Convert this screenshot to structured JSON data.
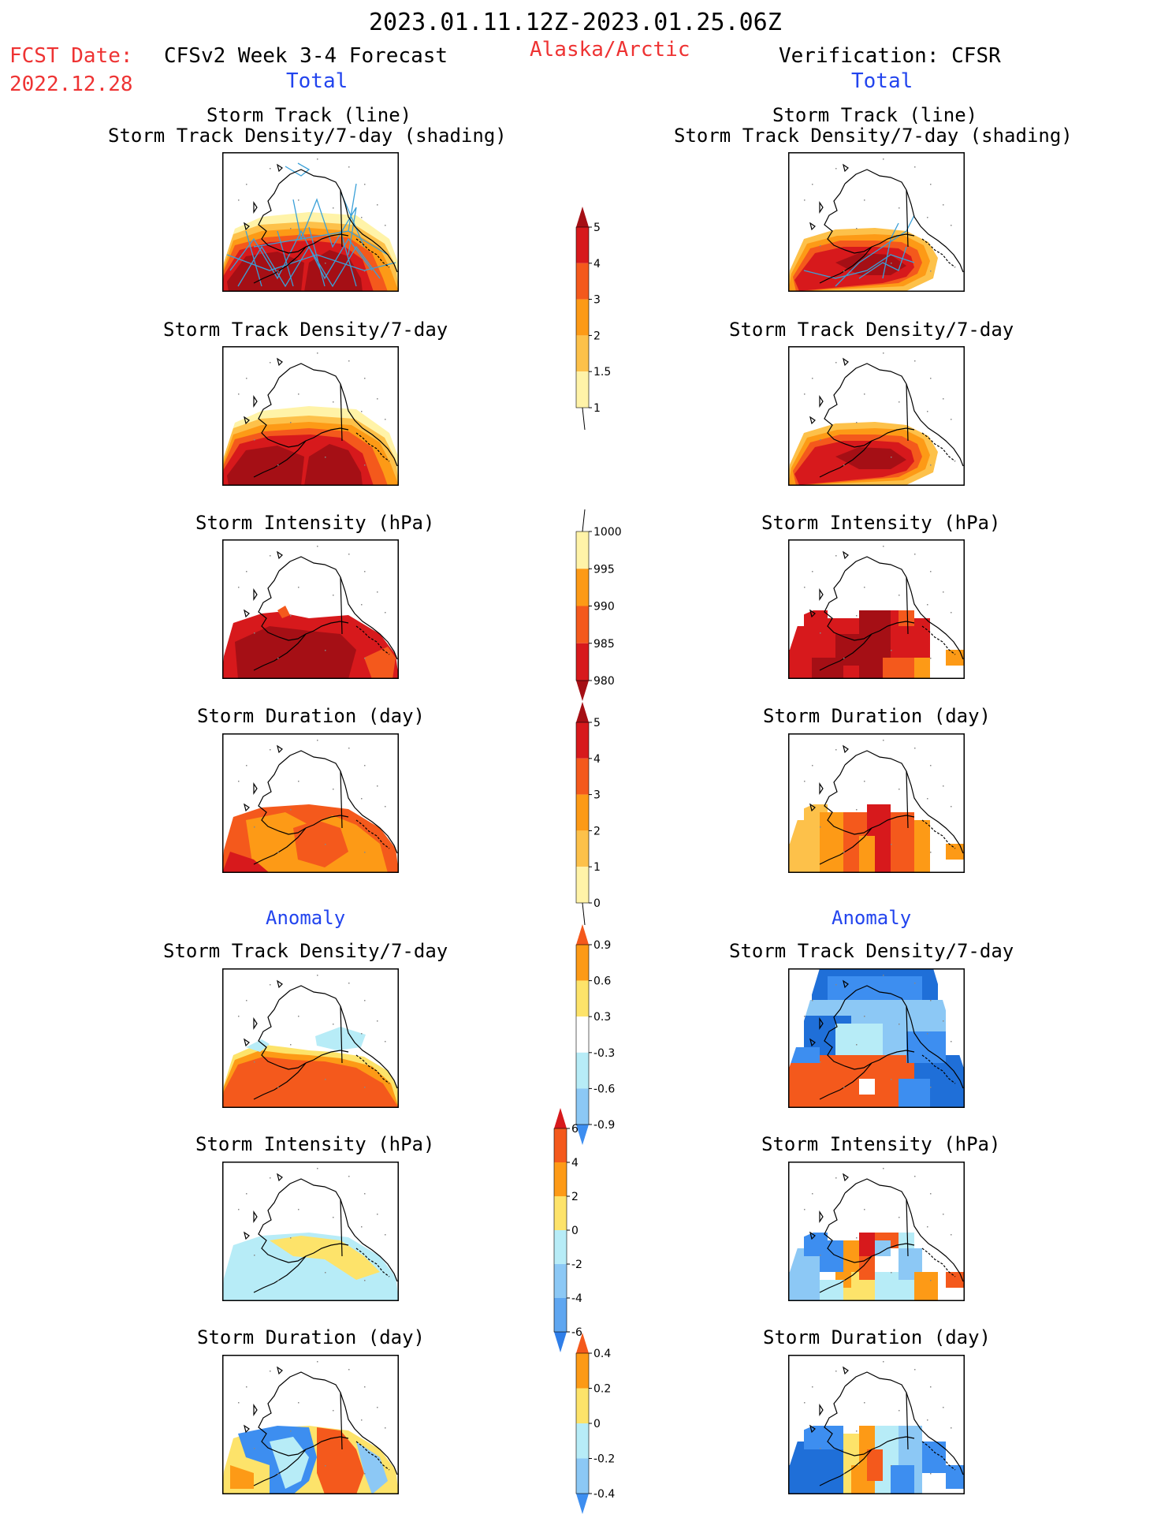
{
  "header": {
    "date_range": "2023.01.11.12Z-2023.01.25.06Z",
    "fcst_label": "FCST Date:",
    "fcst_date": "2022.12.28",
    "forecast_title": "CFSv2 Week 3-4 Forecast",
    "region": "Alaska/Arctic",
    "verification_title": "Verification: CFSR",
    "total_left": "Total",
    "total_right": "Total"
  },
  "sections": {
    "anomaly_left": "Anomaly",
    "anomaly_right": "Anomaly"
  },
  "panel_titles": {
    "storm_track_line": "Storm Track (line)",
    "storm_track_density_shading": "Storm Track Density/7-day (shading)",
    "storm_track_density": "Storm Track Density/7-day",
    "storm_intensity": "Storm Intensity (hPa)",
    "storm_duration": "Storm Duration (day)"
  },
  "colorbars": {
    "density": {
      "labels": [
        "5",
        "4",
        "3",
        "2",
        "1.5",
        "1"
      ],
      "colors": [
        "#a50f15",
        "#d7191c",
        "#f4591c",
        "#fd9a16",
        "#fdc14a",
        "#fff3a8"
      ]
    },
    "intensity": {
      "labels": [
        "1000",
        "995",
        "990",
        "985",
        "980"
      ],
      "colors": [
        "#fff3a8",
        "#fd9a16",
        "#f4591c",
        "#d7191c",
        "#a50f15"
      ]
    },
    "duration": {
      "labels": [
        "5",
        "4",
        "3",
        "2",
        "1",
        "0"
      ],
      "colors": [
        "#a50f15",
        "#d7191c",
        "#f4591c",
        "#fd9a16",
        "#fdc14a",
        "#fff3a8"
      ]
    },
    "density_anom": {
      "labels": [
        "0.9",
        "0.6",
        "0.3",
        "-0.3",
        "-0.6",
        "-0.9"
      ],
      "colors": [
        "#f4591c",
        "#fd9a16",
        "#fde36a",
        "#ffffff",
        "#b7ecf7",
        "#8cc8f5",
        "#3d8ef0"
      ]
    },
    "intensity_anom": {
      "labels": [
        "6",
        "4",
        "2",
        "0",
        "-2",
        "-4",
        "-6"
      ],
      "colors": [
        "#d7191c",
        "#f4591c",
        "#fd9a16",
        "#fde36a",
        "#b7ecf7",
        "#8cc8f5",
        "#5fa6f0",
        "#2f7ee8"
      ]
    },
    "duration_anom": {
      "labels": [
        "0.4",
        "0.2",
        "0",
        "-0.2",
        "-0.4"
      ],
      "colors": [
        "#f4591c",
        "#fd9a16",
        "#fde36a",
        "#b7ecf7",
        "#8cc8f5",
        "#3d8ef0"
      ]
    }
  },
  "colors": {
    "dark_red": "#a50f15",
    "red": "#d7191c",
    "orange_red": "#f4591c",
    "orange": "#fd9a16",
    "light_orange": "#fdc14a",
    "pale_yellow": "#fff3a8",
    "yellow": "#fde36a",
    "pale_blue": "#b7ecf7",
    "light_blue": "#8cc8f5",
    "blue": "#3d8ef0",
    "dark_blue": "#1f6fd8",
    "track_line": "#3aa0d8"
  }
}
